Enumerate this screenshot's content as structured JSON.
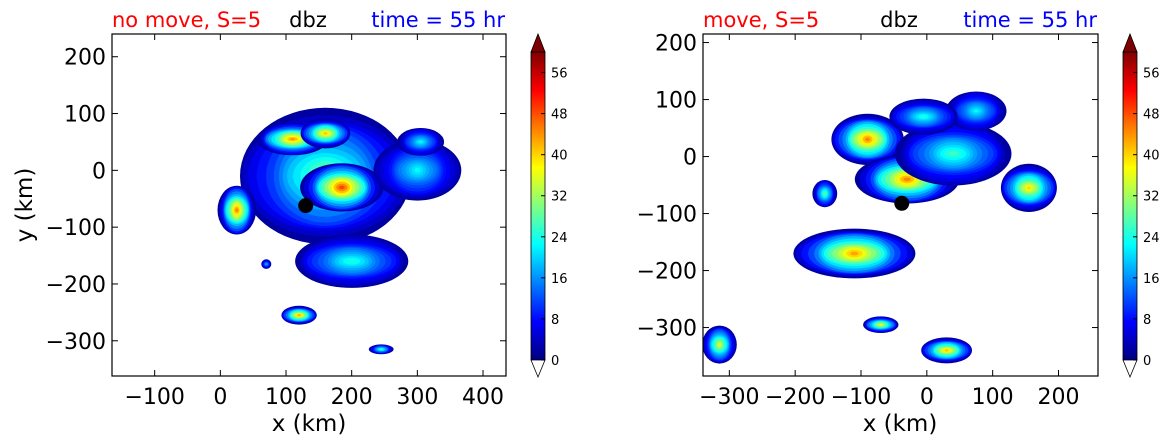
{
  "chart_data": [
    {
      "type": "heatmap",
      "title_left": "no move, S=5",
      "title_center": "dbz",
      "title_right": "time = 55 hr",
      "xlabel": "x (km)",
      "ylabel": "y (km)",
      "xlim": [
        -165,
        435
      ],
      "ylim": [
        -362,
        240
      ],
      "xticks": [
        -100,
        0,
        100,
        200,
        300,
        400
      ],
      "yticks": [
        200,
        100,
        0,
        -100,
        -200,
        -300
      ],
      "marker": {
        "x": 130,
        "y": -62
      },
      "blobs": [
        {
          "x": 160,
          "y": -10,
          "rx": 130,
          "ry": 120,
          "peak": 30
        },
        {
          "x": 185,
          "y": -30,
          "rx": 60,
          "ry": 45,
          "peak": 50
        },
        {
          "x": 110,
          "y": 55,
          "rx": 55,
          "ry": 28,
          "peak": 45
        },
        {
          "x": 160,
          "y": 65,
          "rx": 40,
          "ry": 25,
          "peak": 42
        },
        {
          "x": 300,
          "y": 0,
          "rx": 65,
          "ry": 55,
          "peak": 22
        },
        {
          "x": 25,
          "y": -70,
          "rx": 28,
          "ry": 45,
          "peak": 46
        },
        {
          "x": 200,
          "y": -160,
          "rx": 90,
          "ry": 45,
          "peak": 24
        },
        {
          "x": 120,
          "y": -255,
          "rx": 28,
          "ry": 16,
          "peak": 44
        },
        {
          "x": 245,
          "y": -315,
          "rx": 18,
          "ry": 9,
          "peak": 26
        },
        {
          "x": 305,
          "y": 50,
          "rx": 35,
          "ry": 25,
          "peak": 22
        },
        {
          "x": 70,
          "y": -165,
          "rx": 8,
          "ry": 8,
          "peak": 18
        }
      ]
    },
    {
      "type": "heatmap",
      "title_left": "move, S=5",
      "title_center": "dbz",
      "title_right": "time = 55 hr",
      "xlabel": "x (km)",
      "ylabel": "",
      "xlim": [
        -340,
        260
      ],
      "ylim": [
        -385,
        215
      ],
      "xticks": [
        -300,
        -200,
        -100,
        0,
        100,
        200
      ],
      "yticks": [
        200,
        100,
        0,
        -100,
        -200,
        -300
      ],
      "marker": {
        "x": -38,
        "y": -82
      },
      "blobs": [
        {
          "x": -90,
          "y": 30,
          "rx": 55,
          "ry": 45,
          "peak": 46
        },
        {
          "x": -30,
          "y": -40,
          "rx": 75,
          "ry": 45,
          "peak": 46
        },
        {
          "x": 40,
          "y": 5,
          "rx": 90,
          "ry": 55,
          "peak": 26
        },
        {
          "x": 155,
          "y": -55,
          "rx": 45,
          "ry": 40,
          "peak": 40
        },
        {
          "x": -110,
          "y": -170,
          "rx": 90,
          "ry": 45,
          "peak": 44
        },
        {
          "x": -155,
          "y": -65,
          "rx": 18,
          "ry": 25,
          "peak": 28
        },
        {
          "x": -70,
          "y": -295,
          "rx": 28,
          "ry": 14,
          "peak": 38
        },
        {
          "x": 30,
          "y": -340,
          "rx": 40,
          "ry": 22,
          "peak": 42
        },
        {
          "x": -315,
          "y": -330,
          "rx": 25,
          "ry": 35,
          "peak": 36
        },
        {
          "x": 75,
          "y": 80,
          "rx": 45,
          "ry": 35,
          "peak": 22
        },
        {
          "x": -5,
          "y": 70,
          "rx": 55,
          "ry": 30,
          "peak": 24
        }
      ]
    }
  ],
  "colorbar": {
    "label_values": [
      "56",
      "48",
      "40",
      "32",
      "24",
      "16",
      "8",
      "0"
    ],
    "min": 0,
    "max": 60,
    "stops": [
      "#00007f",
      "#0000ff",
      "#0080ff",
      "#00ffff",
      "#80ff80",
      "#ffff00",
      "#ff8000",
      "#ff0000",
      "#7f0000"
    ]
  },
  "colors": {
    "title_left": "#ff0000",
    "title_center": "#000000",
    "title_right": "#0000ff"
  }
}
